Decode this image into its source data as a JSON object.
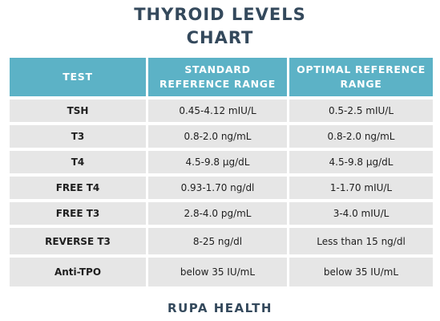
{
  "title": {
    "line1": "THYROID LEVELS",
    "line2": "CHART"
  },
  "table": {
    "headers": [
      "TEST",
      "STANDARD REFERENCE RANGE",
      "OPTIMAL REFERENCE RANGE"
    ],
    "rows": [
      {
        "test": "TSH",
        "standard": "0.45-4.12 mIU/L",
        "optimal": "0.5-2.5 mIU/L"
      },
      {
        "test": "T3",
        "standard": "0.8-2.0 ng/mL",
        "optimal": "0.8-2.0 ng/mL"
      },
      {
        "test": "T4",
        "standard": "4.5-9.8 µg/dL",
        "optimal": "4.5-9.8 µg/dL"
      },
      {
        "test": "FREE T4",
        "standard": "0.93-1.70 ng/dl",
        "optimal": "1-1.70 mIU/L"
      },
      {
        "test": "FREE T3",
        "standard": "2.8-4.0 pg/mL",
        "optimal": "3-4.0 mIU/L"
      },
      {
        "test": "REVERSE T3",
        "standard": "8-25 ng/dl",
        "optimal": "Less than 15 ng/dl"
      },
      {
        "test": "Anti-TPO",
        "standard": "below 35 IU/mL",
        "optimal": "below 35 IU/mL"
      }
    ]
  },
  "footer": {
    "brand": "RUPA HEALTH"
  },
  "colors": {
    "header_bg": "#5cb2c6",
    "row_bg": "#e6e6e6",
    "title_text": "#34495c"
  }
}
